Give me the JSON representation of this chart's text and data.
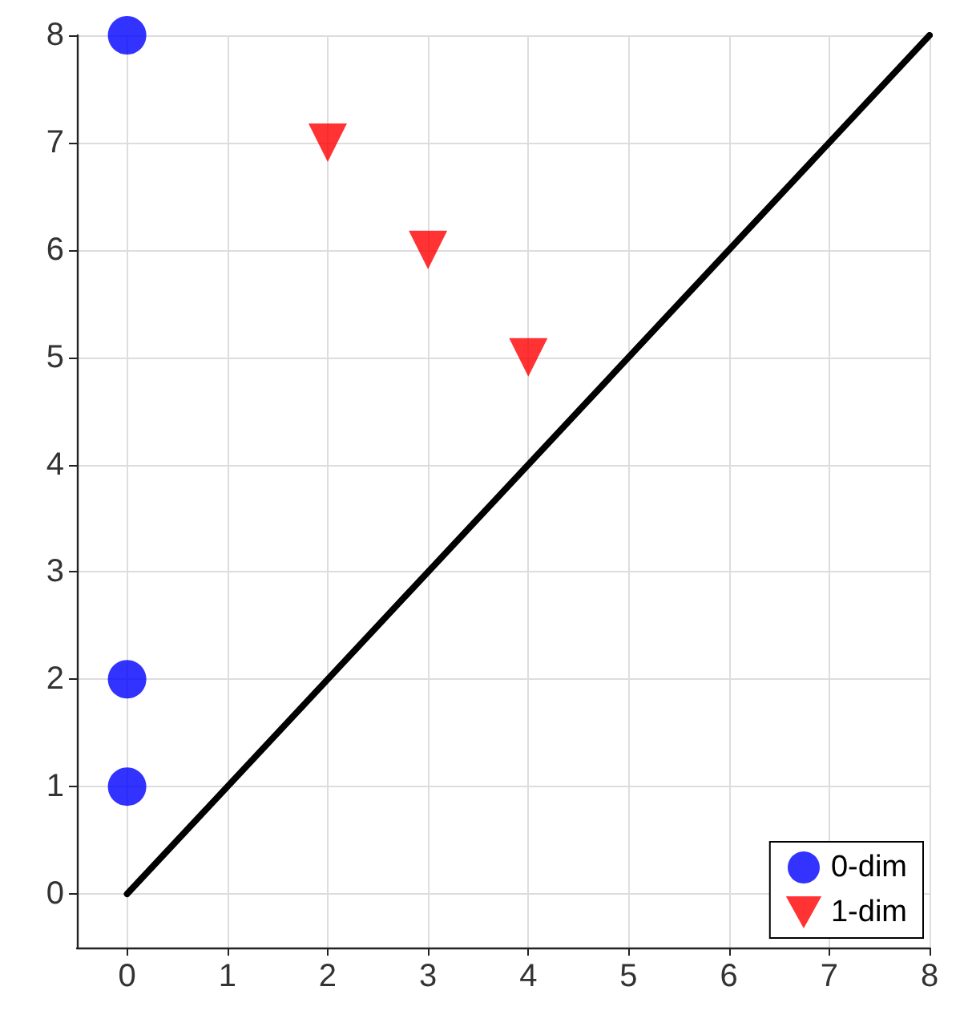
{
  "chart_data": {
    "type": "scatter",
    "xlim": [
      -0.5,
      8
    ],
    "ylim": [
      -0.5,
      8
    ],
    "xticks": [
      0,
      1,
      2,
      3,
      4,
      5,
      6,
      7,
      8
    ],
    "yticks": [
      0,
      1,
      2,
      3,
      4,
      5,
      6,
      7,
      8
    ],
    "grid": true,
    "legend": "bottom right",
    "series": [
      {
        "name": "0-dim",
        "color": "#0000ff",
        "marker": "circle",
        "x": [
          0,
          0,
          0
        ],
        "values": [
          1,
          2,
          8
        ]
      },
      {
        "name": "1-dim",
        "color": "#ff0000",
        "marker": "triangle",
        "x": [
          2,
          3,
          4
        ],
        "values": [
          7,
          6,
          5
        ]
      },
      {
        "type": "line",
        "color": "#000000",
        "marker": "none",
        "line_style": "solid",
        "x": [
          0,
          8
        ],
        "values": [
          0,
          8
        ]
      }
    ]
  }
}
